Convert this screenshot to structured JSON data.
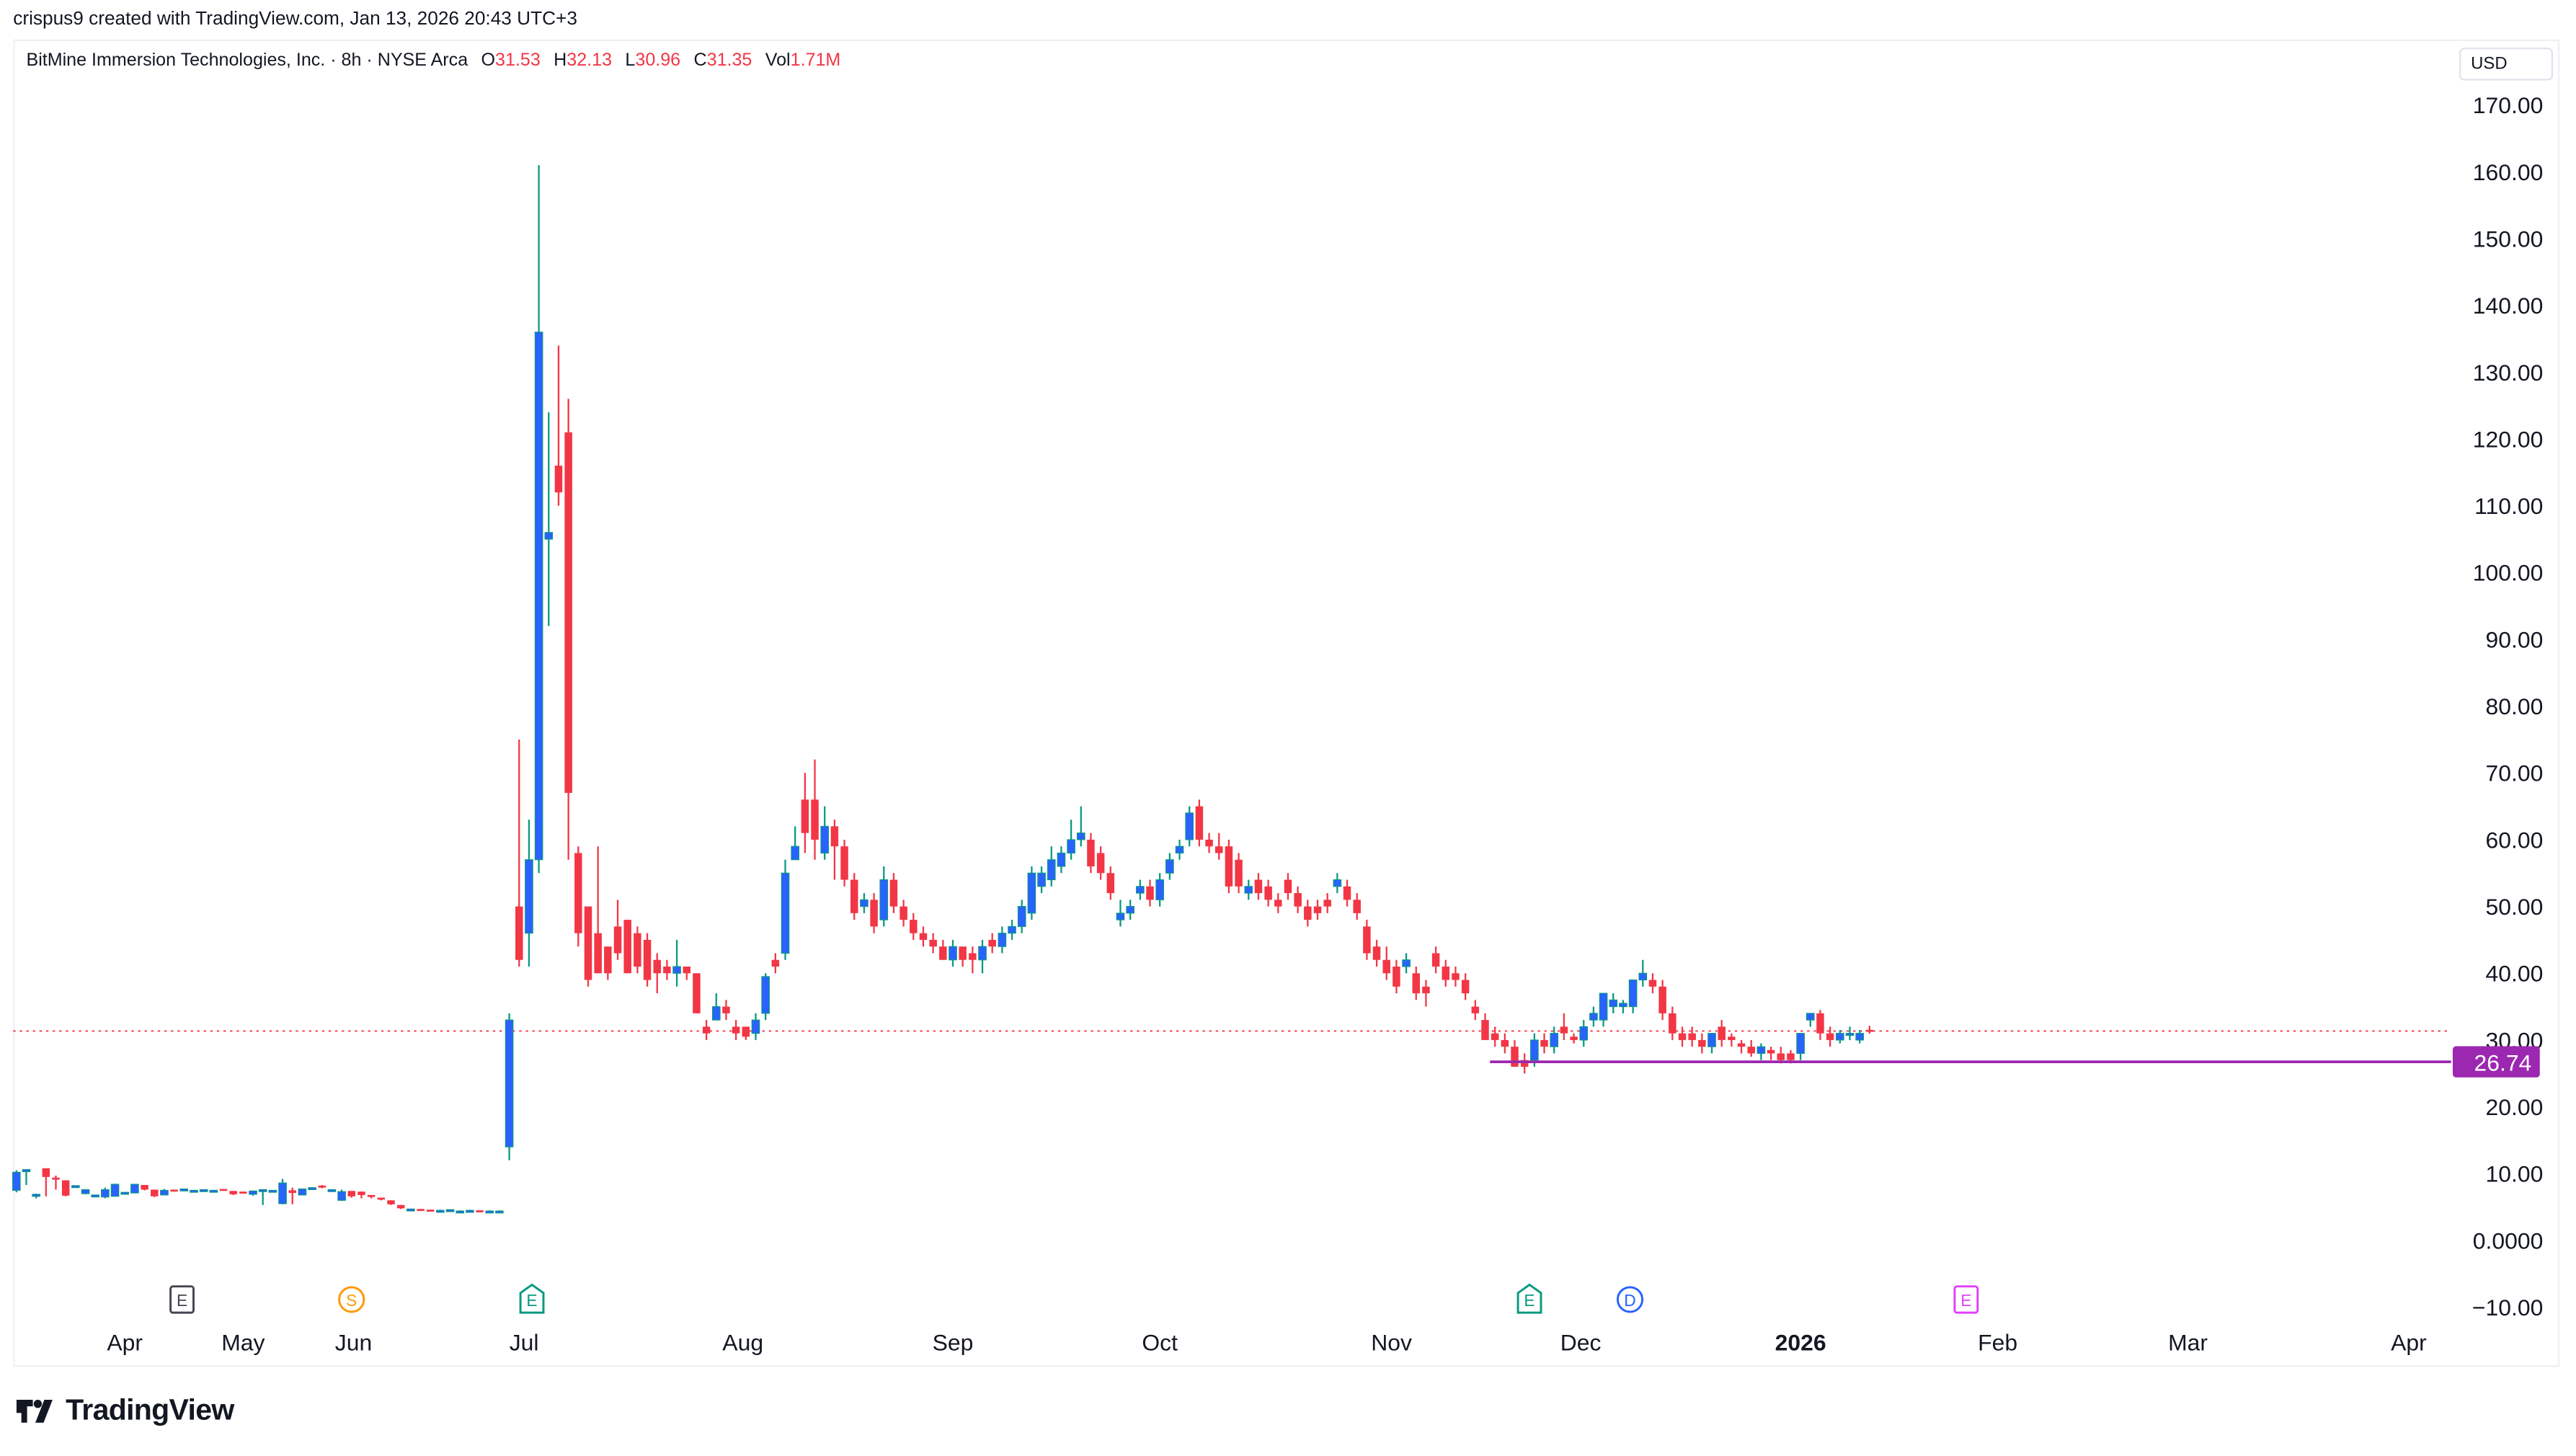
{
  "credit": "crispus9 created with TradingView.com, Jan 13, 2026 20:43 UTC+3",
  "legend": {
    "title": "BitMine Immersion Technologies, Inc. · 8h · NYSE Arca",
    "o_label": "O",
    "o": "31.53",
    "h_label": "H",
    "h": "32.13",
    "l_label": "L",
    "l": "30.96",
    "c_label": "C",
    "c": "31.35",
    "vol_label": "Vol",
    "vol": "1.71M"
  },
  "currency": "USD",
  "footer_logo": "TradingView",
  "colors": {
    "up_body": "#2962ff",
    "up_wick": "#089981",
    "down": "#f23645",
    "level_line": "#9c27b0",
    "last_price_line": "#f23645"
  },
  "chart_data": {
    "type": "candlestick",
    "title": "BitMine Immersion Technologies, Inc. · 8h · NYSE Arca",
    "x_unit": "bar index",
    "ylim": [
      -10,
      175
    ],
    "y_ticks": [
      {
        "v": 170,
        "label": "170.00"
      },
      {
        "v": 160,
        "label": "160.00"
      },
      {
        "v": 150,
        "label": "150.00"
      },
      {
        "v": 140,
        "label": "140.00"
      },
      {
        "v": 130,
        "label": "130.00"
      },
      {
        "v": 120,
        "label": "120.00"
      },
      {
        "v": 110,
        "label": "110.00"
      },
      {
        "v": 100,
        "label": "100.00"
      },
      {
        "v": 90,
        "label": "90.00"
      },
      {
        "v": 80,
        "label": "80.00"
      },
      {
        "v": 70,
        "label": "70.00"
      },
      {
        "v": 60,
        "label": "60.00"
      },
      {
        "v": 50,
        "label": "50.00"
      },
      {
        "v": 40,
        "label": "40.00"
      },
      {
        "v": 30,
        "label": "30.00"
      },
      {
        "v": 20,
        "label": "20.00"
      },
      {
        "v": 10,
        "label": "10.00"
      },
      {
        "v": 0,
        "label": "0.0000"
      },
      {
        "v": -10,
        "label": "−10.00"
      }
    ],
    "x_ticks": [
      {
        "bar": 11,
        "label": "Apr"
      },
      {
        "bar": 23,
        "label": "May"
      },
      {
        "bar": 34.2,
        "label": "Jun"
      },
      {
        "bar": 51.5,
        "label": "Jul"
      },
      {
        "bar": 73.7,
        "label": "Aug"
      },
      {
        "bar": 95,
        "label": "Sep"
      },
      {
        "bar": 116,
        "label": "Oct"
      },
      {
        "bar": 139.5,
        "label": "Nov"
      },
      {
        "bar": 158.7,
        "label": "Dec"
      },
      {
        "bar": 181,
        "label": "2026",
        "bold": true
      },
      {
        "bar": 201,
        "label": "Feb"
      },
      {
        "bar": 220.3,
        "label": "Mar"
      },
      {
        "bar": 242.7,
        "label": "Apr"
      }
    ],
    "events": [
      {
        "bar": 16.8,
        "letter": "E",
        "kind": "earnings-past",
        "color": "#434651"
      },
      {
        "bar": 34,
        "letter": "S",
        "kind": "split",
        "color": "#ff9800"
      },
      {
        "bar": 52.3,
        "letter": "E",
        "kind": "earnings",
        "color": "#089981"
      },
      {
        "bar": 153.5,
        "letter": "E",
        "kind": "earnings",
        "color": "#089981"
      },
      {
        "bar": 163.7,
        "letter": "D",
        "kind": "dividend",
        "color": "#2962ff"
      },
      {
        "bar": 197.8,
        "letter": "E",
        "kind": "earnings-upcoming",
        "color": "#e040fb"
      }
    ],
    "horizontal_level": {
      "value": 26.74,
      "label": "26.74",
      "from_bar": 149.5
    },
    "last_price": 31.35,
    "candles_ohlc": [
      [
        7.5,
        10.5,
        7.2,
        10.2
      ],
      [
        10.3,
        10.6,
        8.3,
        10.6
      ],
      [
        6.6,
        7,
        6.3,
        6.9
      ],
      [
        10.8,
        10.8,
        6.6,
        9.5
      ],
      [
        9.4,
        9.7,
        7.6,
        9.1
      ],
      [
        9.0,
        9.0,
        6.6,
        6.7
      ],
      [
        8.1,
        8.2,
        8.1,
        8.2
      ],
      [
        7.0,
        7.6,
        6.9,
        7.6
      ],
      [
        6.7,
        6.7,
        6.7,
        6.8
      ],
      [
        6.5,
        7.9,
        6.3,
        7.6
      ],
      [
        6.6,
        8.5,
        6.6,
        8.4
      ],
      [
        7.1,
        7.1,
        7.0,
        7.2
      ],
      [
        7.1,
        8.2,
        7.1,
        8.4
      ],
      [
        8.3,
        8.3,
        7.5,
        7.6
      ],
      [
        7.6,
        7.6,
        6.5,
        6.6
      ],
      [
        6.8,
        7.7,
        6.8,
        7.5
      ],
      [
        7.6,
        7.6,
        7.3,
        7.5
      ],
      [
        7.6,
        7.7,
        7.6,
        7.7
      ],
      [
        7.5,
        7.5,
        7.4,
        7.5
      ],
      [
        7.6,
        7.6,
        7.5,
        7.6
      ],
      [
        7.5,
        7.5,
        7.4,
        7.5
      ],
      [
        7.7,
        7.7,
        7.6,
        7.6
      ],
      [
        7.4,
        7.4,
        6.8,
        6.9
      ],
      [
        7.3,
        7.3,
        7.0,
        7.1
      ],
      [
        6.9,
        7.4,
        6.7,
        7.4
      ],
      [
        7.5,
        7.5,
        5.3,
        7.6
      ],
      [
        7.4,
        7.5,
        7.4,
        7.5
      ],
      [
        5.5,
        9.2,
        5.4,
        8.6
      ],
      [
        7.5,
        7.9,
        5.4,
        7.1
      ],
      [
        6.8,
        7.7,
        6.8,
        7.7
      ],
      [
        7.8,
        7.8,
        7.8,
        7.9
      ],
      [
        8.2,
        8.3,
        7.8,
        7.9
      ],
      [
        7.5,
        7.6,
        7.4,
        7.6
      ],
      [
        6.0,
        7.6,
        5.9,
        7.3
      ],
      [
        7.4,
        7.4,
        6.4,
        6.6
      ],
      [
        7.3,
        7.3,
        6.3,
        6.8
      ],
      [
        6.8,
        6.8,
        6.3,
        6.5
      ],
      [
        6.4,
        6.4,
        6.0,
        6.1
      ],
      [
        6.0,
        6.0,
        5.3,
        5.4
      ],
      [
        5.3,
        5.3,
        4.7,
        4.8
      ],
      [
        4.7,
        4.7,
        4.6,
        4.7
      ],
      [
        4.7,
        4.7,
        4.6,
        4.6
      ],
      [
        4.6,
        4.6,
        4.5,
        4.5
      ],
      [
        4.5,
        4.6,
        4.4,
        4.5
      ],
      [
        4.6,
        4.6,
        4.5,
        4.6
      ],
      [
        4.4,
        4.5,
        4.3,
        4.4
      ],
      [
        4.4,
        4.6,
        4.2,
        4.5
      ],
      [
        4.5,
        4.5,
        4.4,
        4.4
      ],
      [
        4.4,
        4.5,
        4.3,
        4.4
      ],
      [
        4.4,
        4.5,
        4.3,
        4.4
      ],
      [
        14,
        34,
        12,
        33
      ],
      [
        50,
        75,
        41,
        42
      ],
      [
        46,
        63,
        41,
        57
      ],
      [
        57,
        161,
        55,
        136
      ],
      [
        105,
        124,
        92,
        106
      ],
      [
        116,
        134,
        110,
        112
      ],
      [
        121,
        126,
        57,
        67
      ],
      [
        58,
        59,
        44,
        46
      ],
      [
        50,
        50,
        38,
        39
      ],
      [
        46,
        59,
        40,
        40
      ],
      [
        44,
        44,
        39,
        40
      ],
      [
        47,
        51,
        42,
        43
      ],
      [
        48,
        48,
        40,
        40
      ],
      [
        46,
        47,
        40,
        41
      ],
      [
        45,
        46,
        38,
        39
      ],
      [
        42,
        43,
        37,
        40
      ],
      [
        41,
        42,
        39,
        40
      ],
      [
        40,
        45,
        38,
        41
      ],
      [
        41,
        41,
        39,
        40
      ],
      [
        40,
        40,
        34,
        34
      ],
      [
        32,
        33,
        30,
        31
      ],
      [
        33,
        37,
        33,
        35
      ],
      [
        35,
        36,
        33,
        34
      ],
      [
        32,
        33,
        30,
        31
      ],
      [
        32,
        32,
        30,
        30.5
      ],
      [
        31,
        34,
        30,
        33
      ],
      [
        34,
        40,
        33,
        39.5
      ],
      [
        42,
        43,
        40,
        41
      ],
      [
        43,
        57,
        42,
        55
      ],
      [
        57,
        62,
        57,
        59
      ],
      [
        66,
        70,
        58,
        61
      ],
      [
        66,
        72,
        57,
        60
      ],
      [
        58,
        65,
        57,
        62
      ],
      [
        62,
        63,
        54,
        59
      ],
      [
        59,
        60,
        53,
        54
      ],
      [
        54,
        55,
        48,
        49
      ],
      [
        50,
        52,
        49,
        51
      ],
      [
        51,
        52,
        46,
        47
      ],
      [
        48,
        56,
        47,
        54
      ],
      [
        54,
        55,
        49,
        50
      ],
      [
        50,
        51,
        47,
        48
      ],
      [
        48,
        49,
        45,
        46
      ],
      [
        46,
        47,
        44,
        45
      ],
      [
        45,
        46,
        43,
        44
      ],
      [
        44,
        45,
        42,
        42
      ],
      [
        42,
        45,
        41,
        44
      ],
      [
        44,
        44,
        41,
        42
      ],
      [
        43,
        44,
        40,
        42
      ],
      [
        42,
        45,
        40,
        44
      ],
      [
        45,
        46,
        43,
        44
      ],
      [
        44,
        47,
        43,
        46
      ],
      [
        46,
        48,
        45,
        47
      ],
      [
        47,
        51,
        46,
        50
      ],
      [
        49,
        56,
        48,
        55
      ],
      [
        53,
        56,
        52,
        55
      ],
      [
        54,
        59,
        53,
        57
      ],
      [
        56,
        59,
        55,
        58
      ],
      [
        58,
        63,
        57,
        60
      ],
      [
        60,
        65,
        59,
        61
      ],
      [
        60,
        61,
        55,
        56
      ],
      [
        58,
        59,
        54,
        55
      ],
      [
        55,
        56,
        51,
        52
      ],
      [
        48,
        51,
        47,
        49
      ],
      [
        49,
        51,
        48,
        50
      ],
      [
        52,
        54,
        51,
        53
      ],
      [
        53,
        54,
        50,
        51
      ],
      [
        51,
        55,
        50,
        54
      ],
      [
        55,
        58,
        54,
        57
      ],
      [
        58,
        60,
        57,
        59
      ],
      [
        60,
        65,
        59,
        64
      ],
      [
        65,
        66,
        59,
        60
      ],
      [
        60,
        61,
        58,
        59
      ],
      [
        59,
        61,
        57,
        58
      ],
      [
        59,
        60,
        52,
        53
      ],
      [
        57,
        58,
        52,
        53
      ],
      [
        52,
        54,
        51,
        53
      ],
      [
        54,
        55,
        51,
        52
      ],
      [
        53,
        54,
        50,
        51
      ],
      [
        51,
        52,
        49,
        50
      ],
      [
        54,
        55,
        51,
        52
      ],
      [
        52,
        53,
        49,
        50
      ],
      [
        50,
        51,
        47,
        48
      ],
      [
        50,
        51,
        48,
        49
      ],
      [
        51,
        52,
        49,
        50
      ],
      [
        53,
        55,
        52,
        54
      ],
      [
        53,
        54,
        50,
        51
      ],
      [
        51,
        52,
        48,
        49
      ],
      [
        47,
        48,
        42,
        43
      ],
      [
        44,
        45,
        41,
        42
      ],
      [
        42,
        44,
        39,
        40
      ],
      [
        41,
        42,
        37,
        38
      ],
      [
        41,
        43,
        40,
        42
      ],
      [
        40,
        41,
        36,
        37
      ],
      [
        38,
        39,
        35,
        37
      ],
      [
        43,
        44,
        40,
        41
      ],
      [
        41,
        42,
        38,
        39
      ],
      [
        40,
        41,
        38,
        39
      ],
      [
        39,
        40,
        36,
        37
      ],
      [
        35,
        36,
        33,
        34
      ],
      [
        33,
        34,
        30,
        30
      ],
      [
        31,
        32,
        29,
        30
      ],
      [
        30,
        31,
        28,
        29
      ],
      [
        29,
        30,
        26,
        26
      ],
      [
        27,
        28,
        25,
        26
      ],
      [
        27,
        31,
        26,
        30
      ],
      [
        30,
        31,
        28,
        29
      ],
      [
        29,
        32,
        28,
        31
      ],
      [
        32,
        34,
        30,
        31
      ],
      [
        30.5,
        31,
        29.5,
        30
      ],
      [
        30,
        33,
        29,
        32
      ],
      [
        33,
        35,
        32,
        34
      ],
      [
        33,
        37,
        32,
        37
      ],
      [
        35,
        37,
        34,
        36
      ],
      [
        35,
        36,
        34,
        35.5
      ],
      [
        35,
        39,
        34,
        39
      ],
      [
        39,
        42,
        38,
        40
      ],
      [
        39,
        40,
        37,
        38
      ],
      [
        38,
        39,
        33,
        34
      ],
      [
        34,
        35,
        30,
        31
      ],
      [
        31,
        32,
        29,
        30
      ],
      [
        31,
        32,
        29,
        30
      ],
      [
        30,
        31,
        28,
        29
      ],
      [
        29,
        31,
        28,
        31
      ],
      [
        32,
        33,
        29,
        30
      ],
      [
        30.5,
        31,
        29,
        30
      ],
      [
        29.5,
        30,
        28,
        29
      ],
      [
        29,
        30,
        27.5,
        28
      ],
      [
        28,
        29.5,
        27,
        29
      ],
      [
        28.5,
        29,
        27,
        28
      ],
      [
        28,
        29,
        26.5,
        27
      ],
      [
        28,
        28.5,
        26.5,
        27
      ],
      [
        28,
        31,
        27,
        31
      ],
      [
        33,
        34,
        32,
        34
      ],
      [
        34,
        34.5,
        30,
        31
      ],
      [
        31,
        32,
        29,
        30
      ],
      [
        30,
        31.5,
        29.5,
        31
      ],
      [
        31,
        32,
        30,
        31
      ],
      [
        30,
        31.5,
        29.5,
        31
      ],
      [
        31.53,
        32.13,
        30.96,
        31.35
      ]
    ]
  }
}
